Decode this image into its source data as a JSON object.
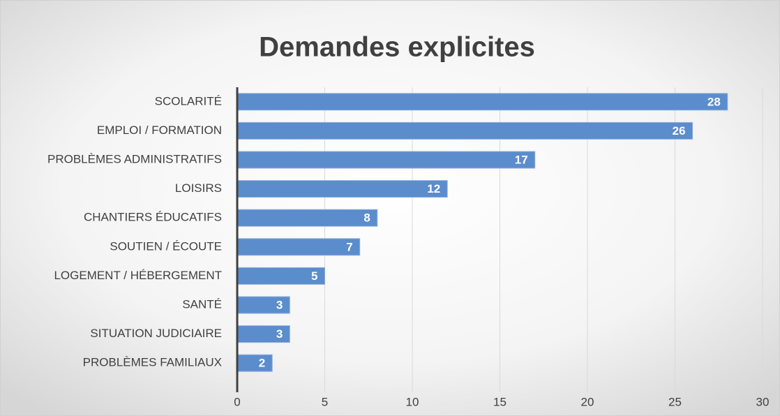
{
  "chart_data": {
    "type": "bar",
    "orientation": "horizontal",
    "title": "Demandes explicites",
    "categories": [
      "SCOLARITÉ",
      "EMPLOI / FORMATION",
      "PROBLÈMES ADMINISTRATIFS",
      "LOISIRS",
      "CHANTIERS ÉDUCATIFS",
      "SOUTIEN / ÉCOUTE",
      "LOGEMENT / HÉBERGEMENT",
      "SANTÉ",
      "SITUATION JUDICIAIRE",
      "PROBLÈMES FAMILIAUX"
    ],
    "values": [
      28,
      26,
      17,
      12,
      8,
      7,
      5,
      3,
      3,
      2
    ],
    "color": "#5b8ccc",
    "xlim": [
      0,
      30
    ],
    "xticks": [
      0,
      5,
      10,
      15,
      20,
      25,
      30
    ],
    "grid": true
  }
}
